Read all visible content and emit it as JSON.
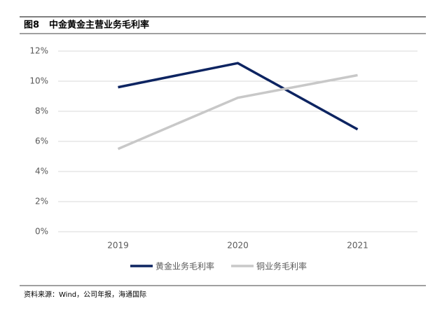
{
  "chart_data": {
    "type": "line",
    "figure_label": "图8",
    "title": "中金黄金主营业务毛利率",
    "source": "资料来源：Wind，公司年报，海通国际",
    "categories": [
      "2019",
      "2020",
      "2021"
    ],
    "series": [
      {
        "name": "黄金业务毛利率",
        "color": "#0d2461",
        "values": [
          9.6,
          11.2,
          6.8
        ]
      },
      {
        "name": "铜业务毛利率",
        "color": "#c8c8c8",
        "values": [
          5.5,
          8.9,
          10.4
        ]
      }
    ],
    "ylim": [
      0,
      12
    ],
    "yticks": [
      {
        "value": 0,
        "label": "0%"
      },
      {
        "value": 2,
        "label": "2%"
      },
      {
        "value": 4,
        "label": "4%"
      },
      {
        "value": 6,
        "label": "6%"
      },
      {
        "value": 8,
        "label": "8%"
      },
      {
        "value": 10,
        "label": "10%"
      },
      {
        "value": 12,
        "label": "12%"
      }
    ],
    "grid": true,
    "legend": "bottom"
  }
}
